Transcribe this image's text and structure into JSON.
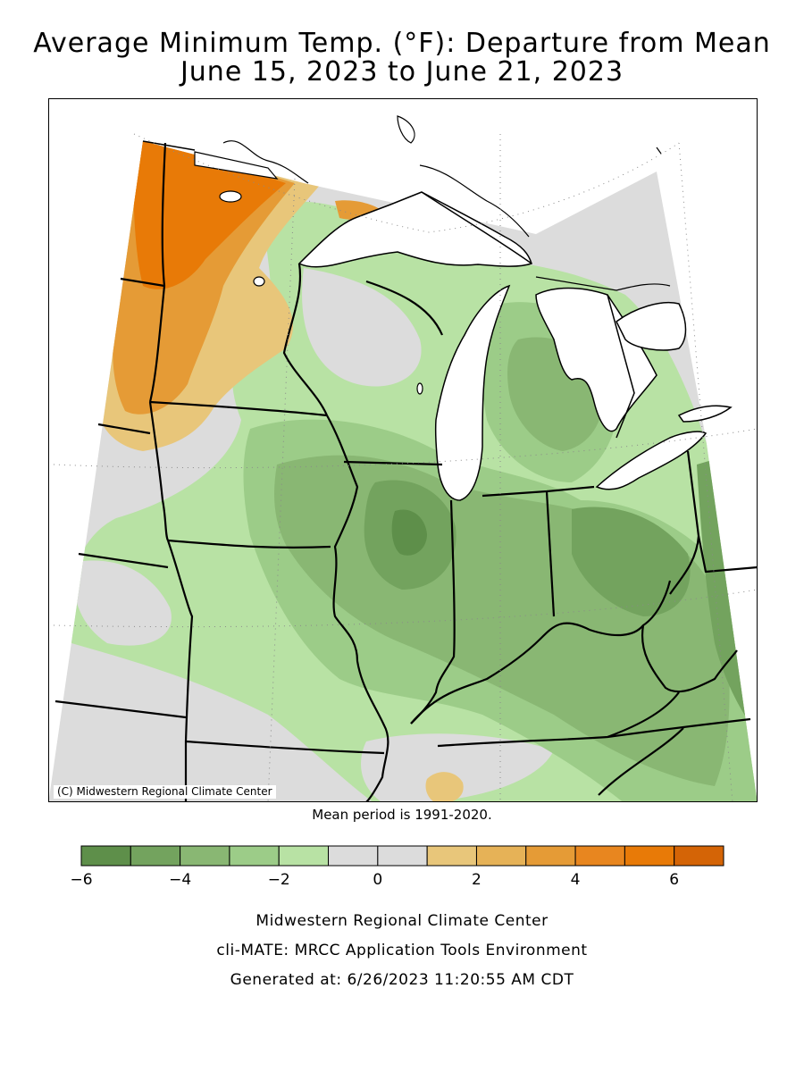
{
  "title_line1": "Average Minimum Temp. (°F): Departure from Mean",
  "title_line2": "June 15, 2023 to June 21, 2023",
  "map_credit": "(C) Midwestern Regional Climate Center",
  "mean_period": "Mean period is 1991-2020.",
  "legend": {
    "unit": "°F departure",
    "bins": [
      {
        "from": -6,
        "to": -5,
        "color": "#5e8f4a"
      },
      {
        "from": -5,
        "to": -4,
        "color": "#73a35e"
      },
      {
        "from": -4,
        "to": -3,
        "color": "#89b773"
      },
      {
        "from": -3,
        "to": -2,
        "color": "#9ccc88"
      },
      {
        "from": -2,
        "to": -1,
        "color": "#b8e2a4"
      },
      {
        "from": -1,
        "to": 0,
        "color": "#dcdcdc"
      },
      {
        "from": 0,
        "to": 1,
        "color": "#dcdcdc"
      },
      {
        "from": 1,
        "to": 2,
        "color": "#e8c67a"
      },
      {
        "from": 2,
        "to": 3,
        "color": "#e6b257"
      },
      {
        "from": 3,
        "to": 4,
        "color": "#e59b36"
      },
      {
        "from": 4,
        "to": 5,
        "color": "#e8861f"
      },
      {
        "from": 5,
        "to": 6,
        "color": "#e87a07"
      },
      {
        "from": 6,
        "to": 7,
        "color": "#d46406"
      }
    ],
    "tick_labels": [
      {
        "value": -6,
        "label": "−6"
      },
      {
        "value": -4,
        "label": "−4"
      },
      {
        "value": -2,
        "label": "−2"
      },
      {
        "value": 0,
        "label": "0"
      },
      {
        "value": 2,
        "label": "2"
      },
      {
        "value": 4,
        "label": "4"
      },
      {
        "value": 6,
        "label": "6"
      }
    ]
  },
  "map_colors": {
    "water": "#ffffff",
    "neutral": "#dcdcdc",
    "warm_light": "#e8c67a",
    "warm_mid": "#e59b36",
    "warm_strong": "#e87a07",
    "cool_light": "#b8e2a4",
    "cool_mid": "#9ccc88",
    "cool_strong": "#89b773",
    "cool_darker": "#73a35e",
    "cool_darkest": "#5e8f4a"
  },
  "footer_line1": "Midwestern Regional Climate Center",
  "footer_line2": "cli-MATE: MRCC Application Tools Environment",
  "footer_line3": "Generated at: 6/26/2023 11:20:55 AM CDT"
}
